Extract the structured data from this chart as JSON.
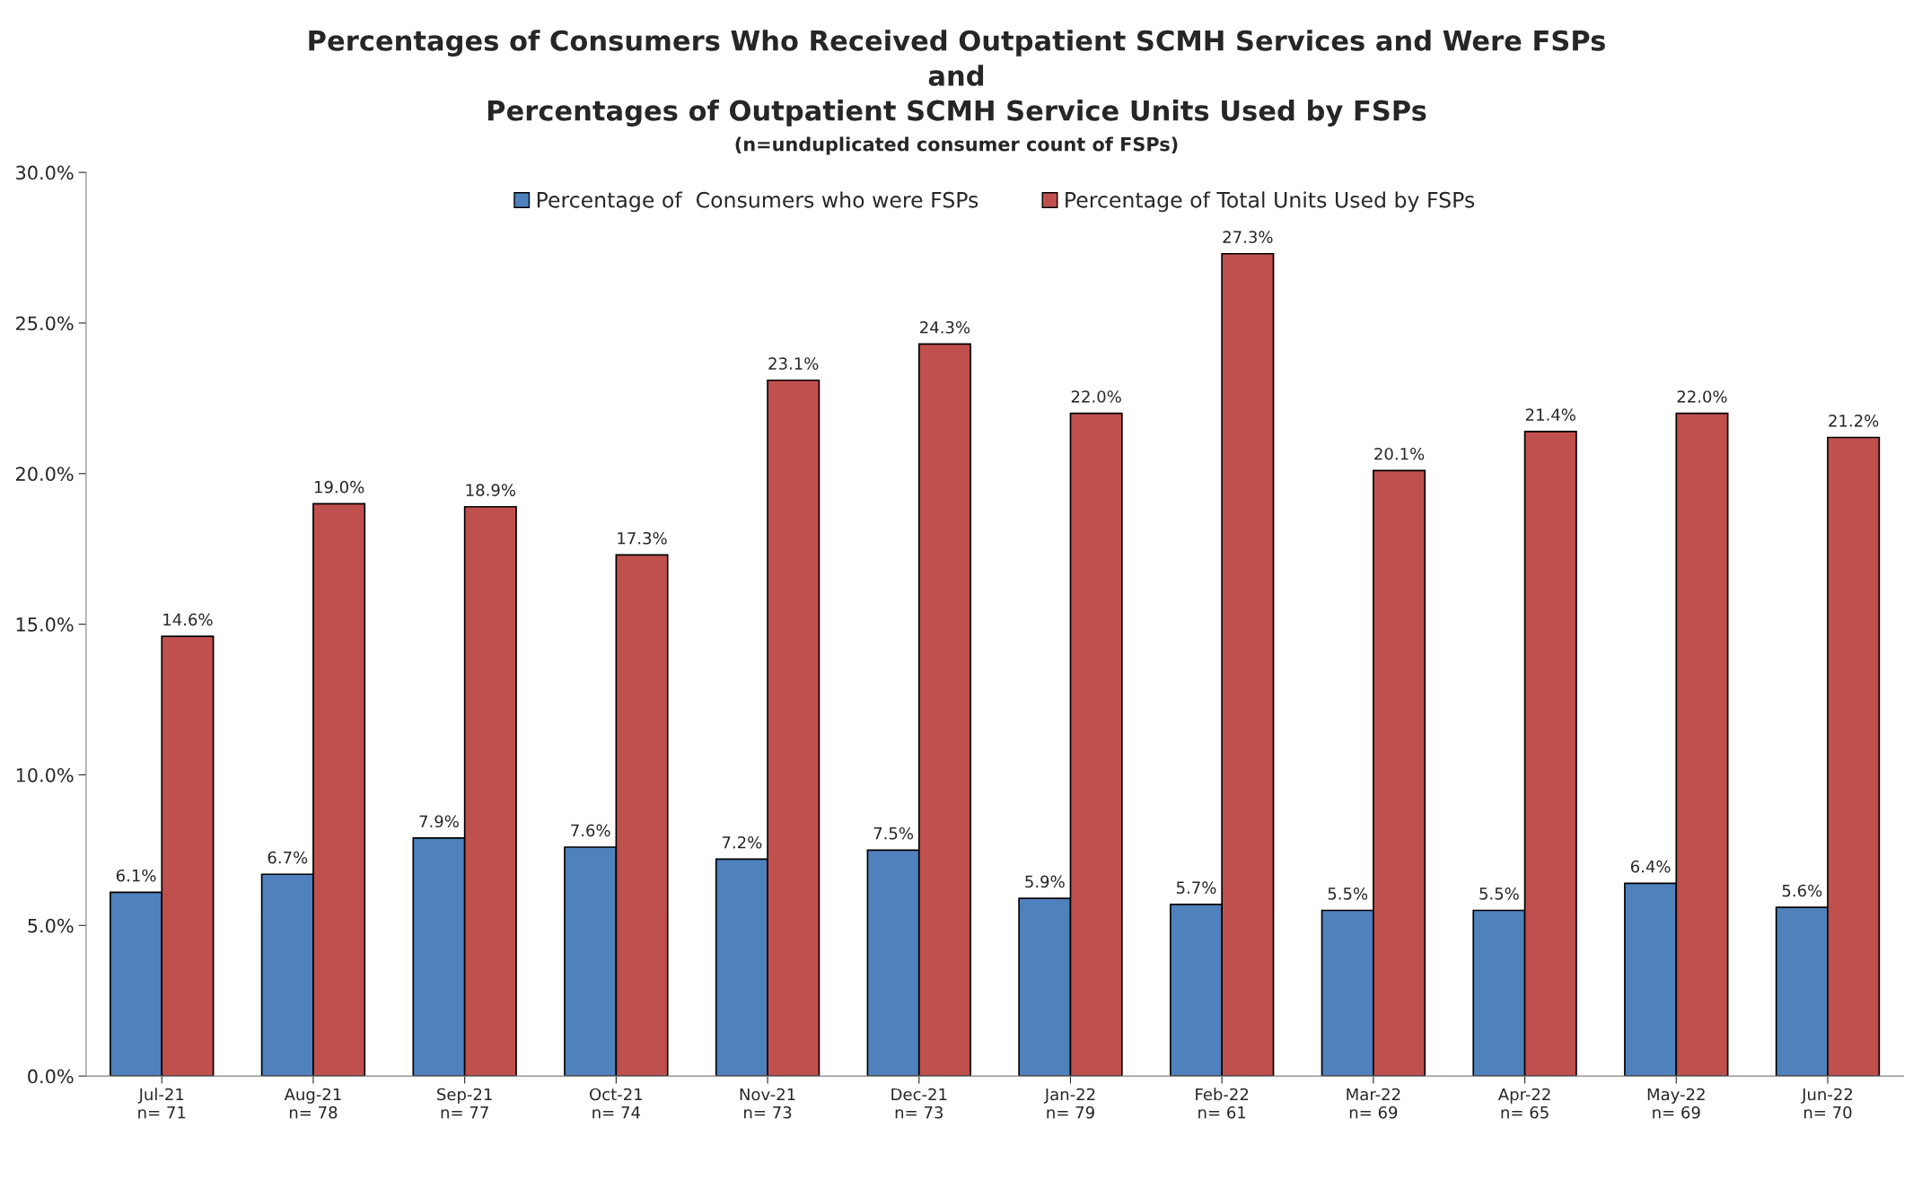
{
  "chart_data": {
    "type": "bar",
    "title": "Percentages of Consumers Who Received Outpatient SCMH Services and Were FSPs\nand\nPercentages of Outpatient SCMH Service Units Used by FSPs",
    "subtitle": "(n=unduplicated consumer count of FSPs)",
    "categories": [
      "Jul-21\nn= 71",
      "Aug-21\nn= 78",
      "Sep-21\nn= 77",
      "Oct-21\nn= 74",
      "Nov-21\nn= 73",
      "Dec-21\nn= 73",
      "Jan-22\nn= 79",
      "Feb-22\nn= 61",
      "Mar-22\nn= 69",
      "Apr-22\nn= 65",
      "May-22\nn= 69",
      "Jun-22\nn= 70"
    ],
    "series": [
      {
        "name": "Percentage of  Consumers who were FSPs",
        "color": "#4f81bd",
        "values": [
          6.1,
          6.7,
          7.9,
          7.6,
          7.2,
          7.5,
          5.9,
          5.7,
          5.5,
          5.5,
          6.4,
          5.6
        ],
        "value_labels": [
          "6.1%",
          "6.7%",
          "7.9%",
          "7.6%",
          "7.2%",
          "7.5%",
          "5.9%",
          "5.7%",
          "5.5%",
          "5.5%",
          "6.4%",
          "5.6%"
        ]
      },
      {
        "name": "Percentage of Total Units Used by FSPs",
        "color": "#c0504d",
        "values": [
          14.6,
          19.0,
          18.9,
          17.3,
          23.1,
          24.3,
          22.0,
          27.3,
          20.1,
          21.4,
          22.0,
          21.2
        ],
        "value_labels": [
          "14.6%",
          "19.0%",
          "18.9%",
          "17.3%",
          "23.1%",
          "24.3%",
          "22.0%",
          "27.3%",
          "20.1%",
          "21.4%",
          "22.0%",
          "21.2%"
        ]
      }
    ],
    "ylim": [
      0,
      30
    ],
    "yticks": [
      {
        "value": 0,
        "label": "0.0%"
      },
      {
        "value": 5,
        "label": "5.0%"
      },
      {
        "value": 10,
        "label": "10.0%"
      },
      {
        "value": 15,
        "label": "15.0%"
      },
      {
        "value": 20,
        "label": "20.0%"
      },
      {
        "value": 25,
        "label": "25.0%"
      },
      {
        "value": 30,
        "label": "30.0%"
      }
    ],
    "grid": false,
    "legend": "top"
  }
}
